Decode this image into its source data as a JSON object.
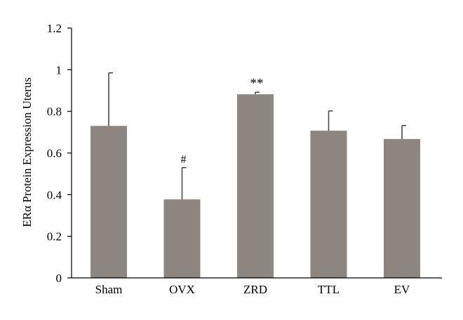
{
  "chart_data": {
    "type": "bar",
    "title": "",
    "xlabel": "",
    "ylabel": "ERα Protein Expression Uterus",
    "categories": [
      "Sham",
      "OVX",
      "ZRD",
      "TTL",
      "EV"
    ],
    "values": [
      0.73,
      0.377,
      0.882,
      0.707,
      0.667
    ],
    "error_upper": [
      0.985,
      0.53,
      0.892,
      0.802,
      0.732
    ],
    "annotations": [
      "",
      "#",
      "**",
      "",
      ""
    ],
    "ylim": [
      0,
      1.2
    ],
    "yticks": [
      0,
      0.2,
      0.4,
      0.6,
      0.8,
      1,
      1.2
    ],
    "ytick_labels": [
      "0",
      "0.2",
      "0.4",
      "0.6",
      "0.8",
      "1",
      "1.2"
    ],
    "grid": false,
    "legend": false,
    "bar_color": "#8c8580",
    "axis_color": "#000000"
  }
}
